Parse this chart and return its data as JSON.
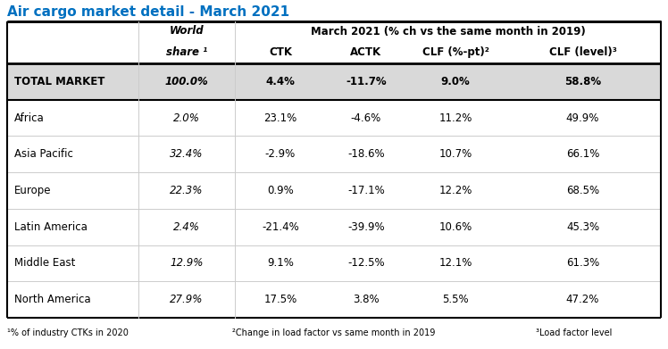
{
  "title": "Air cargo market detail - March 2021",
  "title_color": "#0070C0",
  "header2_main": "March 2021 (% ch vs the same month in 2019)",
  "col_headers": [
    "CTK",
    "ACTK",
    "CLF (%-pt)²",
    "CLF (level)³"
  ],
  "row_labels": [
    "TOTAL MARKET",
    "Africa",
    "Asia Pacific",
    "Europe",
    "Latin America",
    "Middle East",
    "North America"
  ],
  "world_share": [
    "100.0%",
    "2.0%",
    "32.4%",
    "22.3%",
    "2.4%",
    "12.9%",
    "27.9%"
  ],
  "ctk": [
    "4.4%",
    "23.1%",
    "-2.9%",
    "0.9%",
    "-21.4%",
    "9.1%",
    "17.5%"
  ],
  "actk": [
    "-11.7%",
    "-4.6%",
    "-18.6%",
    "-17.1%",
    "-39.9%",
    "-12.5%",
    "3.8%"
  ],
  "clf_pt": [
    "9.0%",
    "11.2%",
    "10.7%",
    "12.2%",
    "10.6%",
    "12.1%",
    "5.5%"
  ],
  "clf_level": [
    "58.8%",
    "49.9%",
    "66.1%",
    "68.5%",
    "45.3%",
    "61.3%",
    "47.2%"
  ],
  "total_market_bg": "#D9D9D9",
  "fn1": "¹% of industry CTKs in 2020",
  "fn2": "²Change in load factor vs same month in 2019",
  "fn3": "³Load factor level",
  "border_color": "#000000",
  "title_fontsize": 11,
  "header_fontsize": 8.5,
  "data_fontsize": 8.5,
  "fn_fontsize": 7
}
